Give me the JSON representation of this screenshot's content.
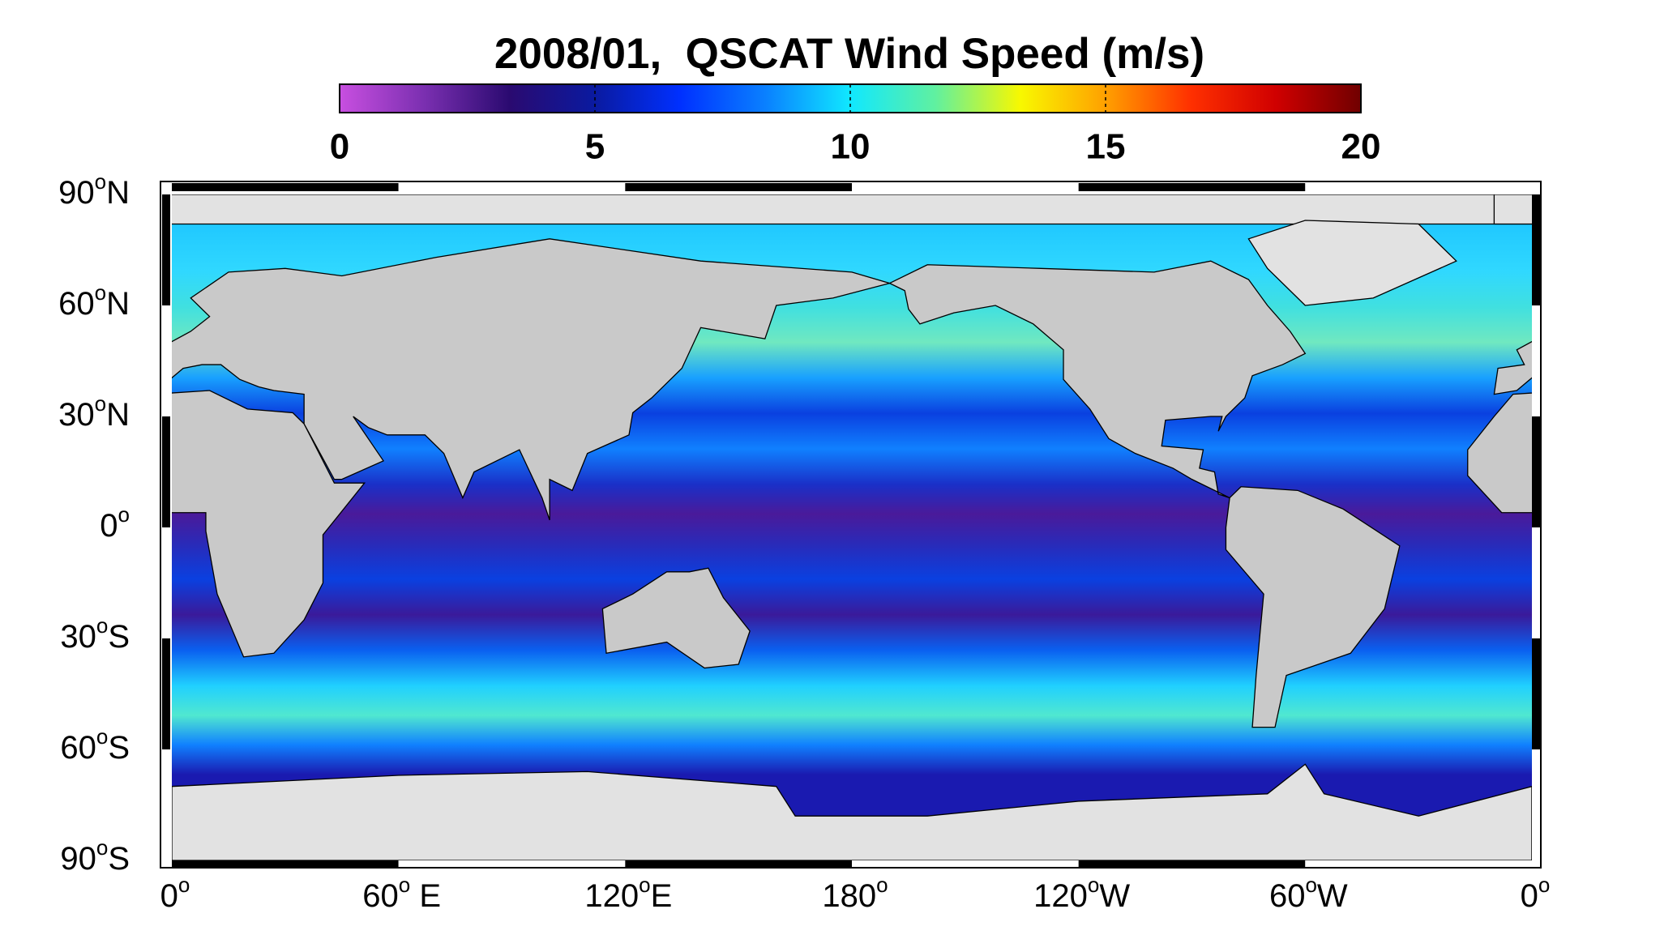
{
  "title": "2008/01,  QSCAT Wind Speed (m/s)",
  "colorbar": {
    "lim": [
      0,
      20
    ],
    "ticks": [
      0,
      5,
      10,
      15,
      20
    ],
    "colors": [
      "#c84fe0",
      "#7a2fb0",
      "#2a0a70",
      "#0a1aa0",
      "#0030ff",
      "#0a80ff",
      "#10e8ff",
      "#60f0a0",
      "#f8f800",
      "#ffa000",
      "#ff3000",
      "#d00000",
      "#700000"
    ]
  },
  "lat_labels": [
    {
      "num": "90",
      "sup": "o",
      "suffix": "N"
    },
    {
      "num": "60",
      "sup": "o",
      "suffix": "N"
    },
    {
      "num": "30",
      "sup": "o",
      "suffix": "N"
    },
    {
      "num": "0",
      "sup": "o"
    },
    {
      "num": "30",
      "sup": "o",
      "suffix": "S"
    },
    {
      "num": "60",
      "sup": "o",
      "suffix": "S"
    },
    {
      "num": "90",
      "sup": "o",
      "suffix": "S"
    }
  ],
  "lon_labels": [
    {
      "num": "0",
      "sup": "o"
    },
    {
      "num": "60",
      "sup": "o",
      "suffix": " E"
    },
    {
      "num": "120",
      "sup": "o",
      "suffix": "E"
    },
    {
      "num": "180",
      "sup": "o"
    },
    {
      "num": "120",
      "sup": "o",
      "suffix": "W"
    },
    {
      "num": "60",
      "sup": "o",
      "suffix": "W"
    },
    {
      "num": "0",
      "sup": "o"
    }
  ]
}
